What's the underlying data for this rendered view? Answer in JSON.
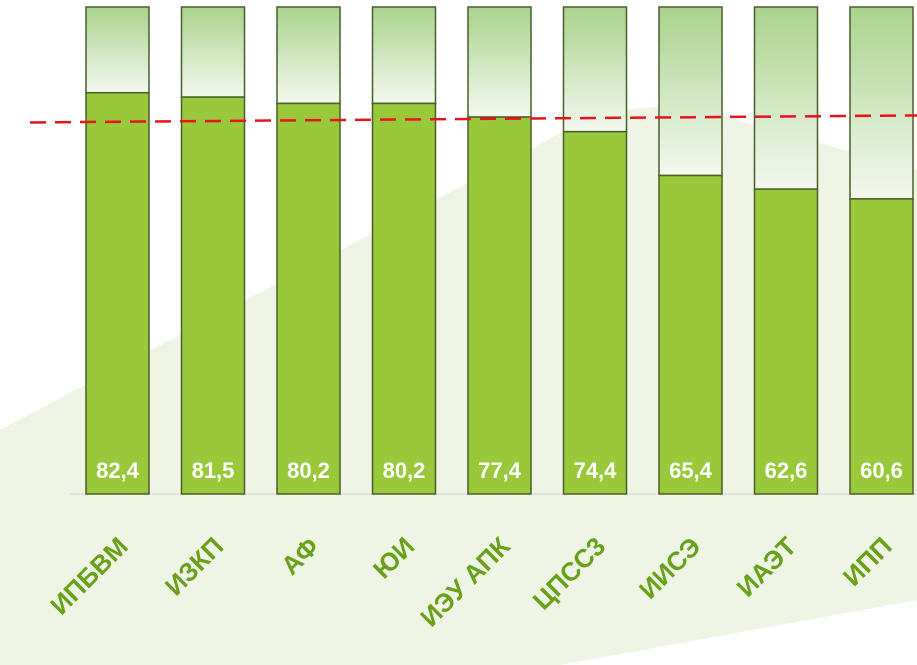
{
  "chart_data": {
    "type": "bar",
    "categories": [
      "ИПБВМ",
      "ИЗКП",
      "АФ",
      "ЮИ",
      "ИЭУ АПК",
      "ЦПСС3",
      "ИИСЭ",
      "ИАЭТ",
      "ИПП"
    ],
    "values": [
      82.4,
      81.5,
      80.2,
      80.2,
      77.4,
      74.4,
      65.4,
      62.6,
      60.6
    ],
    "value_labels": [
      "82,4",
      "81,5",
      "80,2",
      "80,2",
      "77,4",
      "74,4",
      "65,4",
      "62,6",
      "60,6"
    ],
    "ylim": [
      0,
      100
    ],
    "reference_line": {
      "value": 76.5,
      "style": "dashed"
    },
    "title": "",
    "xlabel": "",
    "ylabel": "",
    "grid": false,
    "legend": "none",
    "colors": {
      "bar_fill": "#99c83a",
      "bar_stroke": "#4a5e2a",
      "remainder_top": "#a9d38e",
      "remainder_bottom": "#f4f9ef",
      "reference_line": "#e8141c",
      "category_text": "#6aa11a",
      "value_text": "#ffffff",
      "background_shape": "#eef5e4"
    }
  }
}
